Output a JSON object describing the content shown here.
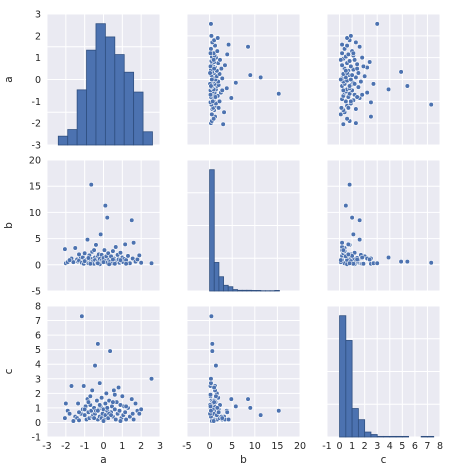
{
  "chart_data": {
    "type": "scatter",
    "variables": [
      "a",
      "b",
      "c"
    ],
    "grid": true,
    "point_color": "#4c72b0",
    "background_color": "#eaeaf2",
    "axes": {
      "a": {
        "label": "a",
        "lim": [
          -3,
          3
        ],
        "ticks": [
          -3,
          -2,
          -1,
          0,
          1,
          2,
          3
        ]
      },
      "b": {
        "label": "b",
        "lim": [
          -5,
          20
        ],
        "ticks": [
          -5,
          0,
          5,
          10,
          15,
          20
        ]
      },
      "c": {
        "label": "c",
        "lim": [
          -1,
          8
        ],
        "ticks": [
          -1,
          0,
          1,
          2,
          3,
          4,
          5,
          6,
          7,
          8
        ]
      }
    },
    "hist_a": {
      "bins": [
        -2.4,
        -1.9,
        -1.4,
        -0.9,
        -0.4,
        0.1,
        0.6,
        1.1,
        1.6,
        2.1,
        2.6
      ],
      "density": [
        0.04,
        0.07,
        0.25,
        0.43,
        0.55,
        0.49,
        0.41,
        0.33,
        0.24,
        0.06,
        0.03
      ]
    },
    "hist_b": {
      "bins": [
        0.0,
        1.03,
        2.06,
        3.09,
        4.12,
        5.15,
        6.18,
        7.21,
        8.24,
        9.27,
        10.3,
        11.33,
        12.36,
        13.39,
        14.42,
        15.45
      ],
      "density": [
        0.85,
        0.2,
        0.1,
        0.04,
        0.03,
        0.01,
        0.005,
        0.005,
        0.005,
        0.004,
        0.004,
        0.002,
        0.002,
        0.002,
        0.004
      ]
    },
    "hist_c": {
      "bins": [
        0.0,
        0.5,
        1.0,
        1.5,
        2.0,
        2.5,
        3.0,
        3.5,
        4.0,
        4.5,
        5.0,
        5.5,
        6.0,
        6.5,
        7.0,
        7.5
      ],
      "density": [
        0.98,
        0.78,
        0.23,
        0.14,
        0.04,
        0.02,
        0.005,
        0.005,
        0.005,
        0.005,
        0.005,
        0.0,
        0.0,
        0.005,
        0.005
      ]
    },
    "points": [
      {
        "a": -2.05,
        "b": 3.0,
        "c": 0.3
      },
      {
        "a": -2.0,
        "b": 0.3,
        "c": 1.3
      },
      {
        "a": -1.9,
        "b": 0.5,
        "c": 0.8
      },
      {
        "a": -1.7,
        "b": 1.2,
        "c": 2.5
      },
      {
        "a": -1.6,
        "b": 0.5,
        "c": 0.1
      },
      {
        "a": -1.5,
        "b": 3.2,
        "c": 0.4
      },
      {
        "a": -1.4,
        "b": 1.0,
        "c": 0.3
      },
      {
        "a": -1.35,
        "b": 0.6,
        "c": 1.3
      },
      {
        "a": -1.3,
        "b": 0.8,
        "c": 0.15
      },
      {
        "a": -1.2,
        "b": 1.5,
        "c": 0.6
      },
      {
        "a": -1.15,
        "b": 0.4,
        "c": 7.3
      },
      {
        "a": -1.1,
        "b": 1.4,
        "c": 0.9
      },
      {
        "a": -1.05,
        "b": 0.2,
        "c": 2.5
      },
      {
        "a": -1.0,
        "b": 2.2,
        "c": 0.5
      },
      {
        "a": -0.95,
        "b": 0.9,
        "c": 1.1
      },
      {
        "a": -0.9,
        "b": 0.6,
        "c": 0.2
      },
      {
        "a": -0.85,
        "b": 4.8,
        "c": 1.6
      },
      {
        "a": -0.8,
        "b": 0.3,
        "c": 0.7
      },
      {
        "a": -0.75,
        "b": 1.8,
        "c": 0.3
      },
      {
        "a": -0.7,
        "b": 0.5,
        "c": 1.2
      },
      {
        "a": -0.65,
        "b": 15.3,
        "c": 0.8
      },
      {
        "a": -0.6,
        "b": 2.5,
        "c": 0.4
      },
      {
        "a": -0.6,
        "b": 1.1,
        "c": 2.2
      },
      {
        "a": -0.55,
        "b": 0.7,
        "c": 0.5
      },
      {
        "a": -0.5,
        "b": 0.2,
        "c": 1.0
      },
      {
        "a": -0.45,
        "b": 1.4,
        "c": 3.9
      },
      {
        "a": -0.45,
        "b": 0.9,
        "c": 0.6
      },
      {
        "a": -0.4,
        "b": 3.8,
        "c": 0.8
      },
      {
        "a": -0.35,
        "b": 0.4,
        "c": 1.5
      },
      {
        "a": -0.3,
        "b": 1.7,
        "c": 0.2
      },
      {
        "a": -0.3,
        "b": 0.6,
        "c": 5.4
      },
      {
        "a": -0.25,
        "b": 2.0,
        "c": 0.9
      },
      {
        "a": -0.2,
        "b": 1.1,
        "c": 0.4
      },
      {
        "a": -0.2,
        "b": 0.3,
        "c": 2.7
      },
      {
        "a": -0.15,
        "b": 5.8,
        "c": 1.1
      },
      {
        "a": -0.1,
        "b": 0.8,
        "c": 0.3
      },
      {
        "a": -0.1,
        "b": 1.9,
        "c": 1.7
      },
      {
        "a": -0.05,
        "b": 0.5,
        "c": 0.6
      },
      {
        "a": 0.0,
        "b": 1.3,
        "c": 0.9
      },
      {
        "a": 0.05,
        "b": 2.8,
        "c": 0.2
      },
      {
        "a": 0.1,
        "b": 0.7,
        "c": 1.3
      },
      {
        "a": 0.1,
        "b": 11.3,
        "c": 0.5
      },
      {
        "a": 0.15,
        "b": 1.6,
        "c": 2.0
      },
      {
        "a": 0.2,
        "b": 0.4,
        "c": 0.8
      },
      {
        "a": 0.2,
        "b": 9.0,
        "c": 1.0
      },
      {
        "a": 0.25,
        "b": 2.2,
        "c": 0.3
      },
      {
        "a": 0.3,
        "b": 1.0,
        "c": 1.5
      },
      {
        "a": 0.35,
        "b": 0.6,
        "c": 4.9
      },
      {
        "a": 0.4,
        "b": 1.5,
        "c": 0.7
      },
      {
        "a": 0.45,
        "b": 0.3,
        "c": 1.1
      },
      {
        "a": 0.5,
        "b": 2.6,
        "c": 0.4
      },
      {
        "a": 0.55,
        "b": 1.2,
        "c": 2.2
      },
      {
        "a": 0.6,
        "b": 0.8,
        "c": 0.9
      },
      {
        "a": 0.65,
        "b": 3.4,
        "c": 0.2
      },
      {
        "a": 0.7,
        "b": 0.5,
        "c": 1.4
      },
      {
        "a": 0.75,
        "b": 1.9,
        "c": 0.6
      },
      {
        "a": 0.8,
        "b": 1.0,
        "c": 2.4
      },
      {
        "a": 0.85,
        "b": 0.4,
        "c": 0.8
      },
      {
        "a": 0.9,
        "b": 2.3,
        "c": 1.2
      },
      {
        "a": 0.95,
        "b": 0.7,
        "c": 0.3
      },
      {
        "a": 1.0,
        "b": 1.4,
        "c": 1.8
      },
      {
        "a": 1.05,
        "b": 0.5,
        "c": 0.5
      },
      {
        "a": 1.1,
        "b": 1.1,
        "c": 1.1
      },
      {
        "a": 1.15,
        "b": 3.9,
        "c": 0.7
      },
      {
        "a": 1.2,
        "b": 0.9,
        "c": 0.2
      },
      {
        "a": 1.3,
        "b": 1.7,
        "c": 1.0
      },
      {
        "a": 1.4,
        "b": 0.3,
        "c": 0.4
      },
      {
        "a": 1.5,
        "b": 8.5,
        "c": 1.6
      },
      {
        "a": 1.55,
        "b": 1.2,
        "c": 0.6
      },
      {
        "a": 1.6,
        "b": 4.2,
        "c": 0.2
      },
      {
        "a": 1.7,
        "b": 0.6,
        "c": 1.3
      },
      {
        "a": 1.8,
        "b": 1.0,
        "c": 0.8
      },
      {
        "a": 1.9,
        "b": 1.8,
        "c": 0.6
      },
      {
        "a": 2.0,
        "b": 0.4,
        "c": 0.9
      },
      {
        "a": 2.55,
        "b": 0.3,
        "c": 3.0
      },
      {
        "a": -1.8,
        "b": 0.9,
        "c": 0.6
      },
      {
        "a": -0.7,
        "b": 0.2,
        "c": 1.8
      },
      {
        "a": -0.5,
        "b": 2.8,
        "c": 0.3
      },
      {
        "a": 0.3,
        "b": 0.1,
        "c": 0.6
      },
      {
        "a": 0.6,
        "b": 0.2,
        "c": 1.9
      },
      {
        "a": -0.2,
        "b": 0.1,
        "c": 1.2
      },
      {
        "a": -1.0,
        "b": 0.7,
        "c": 0.9
      },
      {
        "a": 0.0,
        "b": 0.5,
        "c": 0.1
      },
      {
        "a": 0.4,
        "b": 1.6,
        "c": 0.5
      },
      {
        "a": -0.8,
        "b": 1.3,
        "c": 1.4
      },
      {
        "a": 1.2,
        "b": 0.2,
        "c": 1.1
      },
      {
        "a": -1.3,
        "b": 2.0,
        "c": 0.7
      },
      {
        "a": 0.9,
        "b": 0.9,
        "c": 0.1
      },
      {
        "a": -0.3,
        "b": 0.3,
        "c": 0.8
      },
      {
        "a": 0.5,
        "b": 1.0,
        "c": 1.4
      }
    ]
  }
}
